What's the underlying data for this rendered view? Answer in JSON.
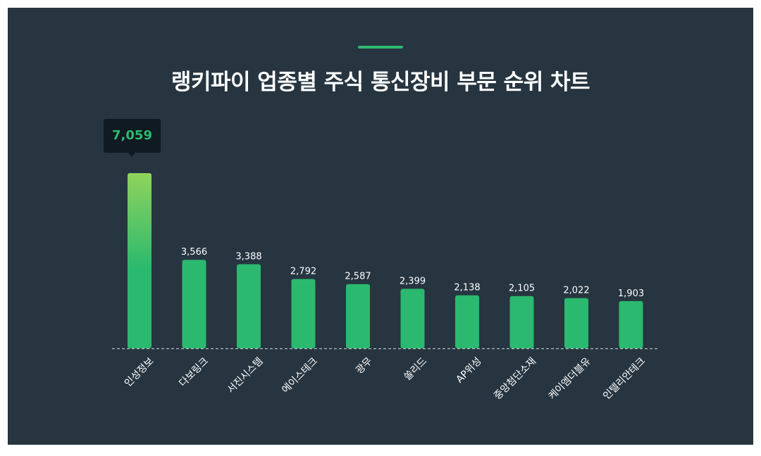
{
  "title": "랭키파이 업종별 주식 통신장비 부문 순위 차트",
  "colors": {
    "background": "#263540",
    "bar": "#2ab96e",
    "highlight_top": "#8fd35c",
    "highlight_bottom": "#2ab96e",
    "accent": "#2fb970",
    "tooltip_bg": "#0f1a22",
    "tooltip_text": "#2fb970",
    "label": "#ffffff",
    "baseline": "#b7bec4"
  },
  "chart_data": {
    "type": "bar",
    "title": "랭키파이 업종별 주식 통신장비 부문 순위 차트",
    "categories": [
      "인성정보",
      "다보링크",
      "서진시스템",
      "에이스테크",
      "광무",
      "쏠리드",
      "AP위성",
      "중앙첨단소재",
      "케이엠더블유",
      "인텔리안테크"
    ],
    "values": [
      7059,
      3566,
      3388,
      2792,
      2587,
      2399,
      2138,
      2105,
      2022,
      1903
    ],
    "value_labels": [
      "7,059",
      "3,566",
      "3,388",
      "2,792",
      "2,587",
      "2,399",
      "2,138",
      "2,105",
      "2,022",
      "1,903"
    ],
    "highlight_index": 0,
    "xlabel": "",
    "ylabel": "",
    "ylim": [
      0,
      7059
    ],
    "grid": false,
    "legend": "none"
  }
}
